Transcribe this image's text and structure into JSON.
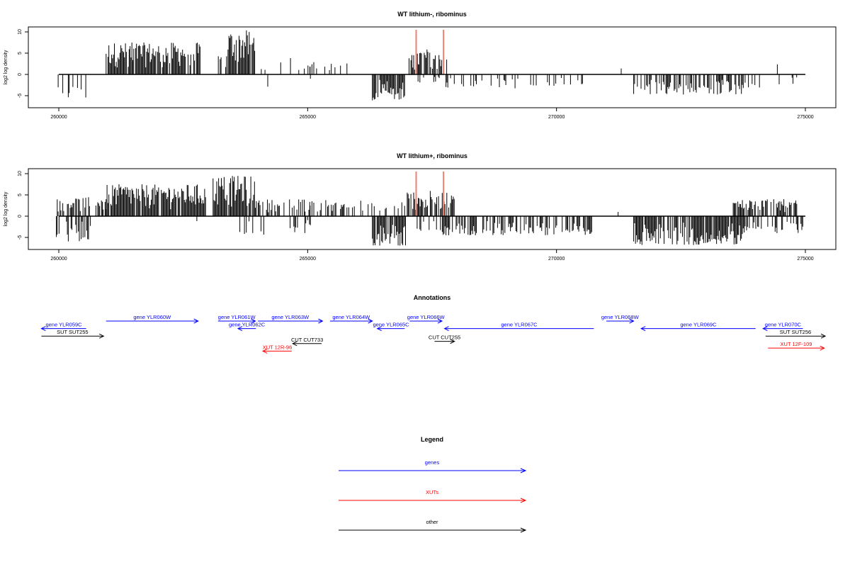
{
  "chart_data": [
    {
      "type": "bar",
      "title": "WT lithium-, ribominus",
      "ylabel": "log2 log density",
      "xlabel": "",
      "xlim": [
        260000,
        275000
      ],
      "ylim": [
        -7,
        11
      ],
      "x_ticks": [
        260000,
        265000,
        270000,
        275000
      ],
      "x_tick_labels": [
        "260000",
        "265000",
        "270000",
        "275000"
      ],
      "y_ticks": [
        -5,
        0,
        5,
        10
      ],
      "y_tick_labels": [
        "-5",
        "0",
        "5",
        "10"
      ],
      "highlight_color": "#f08070",
      "highlight_x": [
        267180,
        267730
      ],
      "highlight_height": 10.5,
      "series": [
        {
          "strand": "+",
          "color": "#000000",
          "regions": [
            {
              "from": 259950,
              "to": 260150,
              "density": 0.12,
              "max": 1.5
            },
            {
              "from": 260200,
              "to": 260500,
              "density": 0.1,
              "max": 4.3
            },
            {
              "from": 260550,
              "to": 260750,
              "density": 0.07,
              "max": 2.5
            },
            {
              "from": 260950,
              "to": 262850,
              "density": 0.85,
              "max": 7.5
            },
            {
              "from": 263150,
              "to": 263400,
              "density": 0.35,
              "max": 4.5
            },
            {
              "from": 263400,
              "to": 263950,
              "density": 0.9,
              "max": 10.4
            },
            {
              "from": 264050,
              "to": 264200,
              "density": 0.1,
              "max": 3.0
            },
            {
              "from": 264200,
              "to": 264500,
              "density": 0.08,
              "max": 3.5
            },
            {
              "from": 264600,
              "to": 265050,
              "density": 0.18,
              "max": 4.0
            },
            {
              "from": 265050,
              "to": 265850,
              "density": 0.12,
              "max": 3.5
            },
            {
              "from": 265900,
              "to": 266200,
              "density": 0.1,
              "max": 3.2
            },
            {
              "from": 267000,
              "to": 267250,
              "density": 0.6,
              "max": 5.0
            },
            {
              "from": 267250,
              "to": 267700,
              "density": 0.7,
              "max": 6.0
            },
            {
              "from": 267700,
              "to": 267900,
              "density": 0.3,
              "max": 4.0
            },
            {
              "from": 270950,
              "to": 271050,
              "density": 0.08,
              "max": 2.0
            },
            {
              "from": 271300,
              "to": 271550,
              "density": 0.1,
              "max": 2.5
            },
            {
              "from": 274100,
              "to": 274300,
              "density": 0.1,
              "max": 3.5
            },
            {
              "from": 274400,
              "to": 274900,
              "density": 0.08,
              "max": 2.5
            }
          ]
        },
        {
          "strand": "-",
          "color": "#000000",
          "regions": [
            {
              "from": 259950,
              "to": 260550,
              "density": 0.45,
              "max": 5.5
            },
            {
              "from": 261000,
              "to": 261250,
              "density": 0.05,
              "max": 1.5
            },
            {
              "from": 264050,
              "to": 264300,
              "density": 0.08,
              "max": 3.5
            },
            {
              "from": 264650,
              "to": 264950,
              "density": 0.1,
              "max": 3.5
            },
            {
              "from": 265000,
              "to": 265300,
              "density": 0.08,
              "max": 2.5
            },
            {
              "from": 266300,
              "to": 266950,
              "density": 0.85,
              "max": 6.2
            },
            {
              "from": 267200,
              "to": 267650,
              "density": 0.15,
              "max": 2.5
            },
            {
              "from": 267650,
              "to": 269800,
              "density": 0.22,
              "max": 3.5
            },
            {
              "from": 269800,
              "to": 270800,
              "density": 0.2,
              "max": 3.0
            },
            {
              "from": 271550,
              "to": 273800,
              "density": 0.55,
              "max": 4.8
            },
            {
              "from": 273800,
              "to": 274300,
              "density": 0.12,
              "max": 3.2
            },
            {
              "from": 274400,
              "to": 274900,
              "density": 0.1,
              "max": 2.5
            }
          ]
        }
      ]
    },
    {
      "type": "bar",
      "title": "WT lithium+, ribominus",
      "ylabel": "log2 log density",
      "xlabel": "",
      "xlim": [
        260000,
        275000
      ],
      "ylim": [
        -7,
        11
      ],
      "x_ticks": [
        260000,
        265000,
        270000,
        275000
      ],
      "x_tick_labels": [
        "260000",
        "265000",
        "270000",
        "275000"
      ],
      "y_ticks": [
        -5,
        0,
        5,
        10
      ],
      "y_tick_labels": [
        "-5",
        "0",
        "5",
        "10"
      ],
      "highlight_color": "#f08070",
      "highlight_x": [
        267180,
        267730
      ],
      "highlight_height": 10.5,
      "series": [
        {
          "strand": "+",
          "color": "#000000",
          "regions": [
            {
              "from": 259950,
              "to": 260950,
              "density": 0.55,
              "max": 4.5
            },
            {
              "from": 260950,
              "to": 262950,
              "density": 0.9,
              "max": 7.5
            },
            {
              "from": 263100,
              "to": 263950,
              "density": 0.9,
              "max": 9.5
            },
            {
              "from": 263950,
              "to": 265050,
              "density": 0.45,
              "max": 4.0
            },
            {
              "from": 265050,
              "to": 266300,
              "density": 0.4,
              "max": 3.8
            },
            {
              "from": 266300,
              "to": 266950,
              "density": 0.35,
              "max": 3.5
            },
            {
              "from": 267000,
              "to": 267950,
              "density": 0.8,
              "max": 6.0
            },
            {
              "from": 270950,
              "to": 271050,
              "density": 0.08,
              "max": 1.5
            },
            {
              "from": 271200,
              "to": 271500,
              "density": 0.12,
              "max": 2.5
            },
            {
              "from": 271950,
              "to": 272050,
              "density": 0.05,
              "max": 3.0
            },
            {
              "from": 273550,
              "to": 274950,
              "density": 0.6,
              "max": 4.0
            }
          ]
        },
        {
          "strand": "-",
          "color": "#000000",
          "regions": [
            {
              "from": 259950,
              "to": 260650,
              "density": 0.55,
              "max": 6.0
            },
            {
              "from": 261950,
              "to": 262050,
              "density": 0.05,
              "max": 1.5
            },
            {
              "from": 262700,
              "to": 262900,
              "density": 0.1,
              "max": 2.5
            },
            {
              "from": 263600,
              "to": 264200,
              "density": 0.2,
              "max": 4.5
            },
            {
              "from": 264500,
              "to": 265100,
              "density": 0.25,
              "max": 4.0
            },
            {
              "from": 266300,
              "to": 267000,
              "density": 0.9,
              "max": 7.0
            },
            {
              "from": 267200,
              "to": 267650,
              "density": 0.3,
              "max": 3.5
            },
            {
              "from": 267650,
              "to": 269800,
              "density": 0.55,
              "max": 4.5
            },
            {
              "from": 269800,
              "to": 270800,
              "density": 0.5,
              "max": 4.5
            },
            {
              "from": 271550,
              "to": 273800,
              "density": 0.85,
              "max": 6.8
            },
            {
              "from": 273800,
              "to": 274950,
              "density": 0.4,
              "max": 4.0
            }
          ]
        }
      ]
    },
    {
      "type": "diagram",
      "title": "Annotations",
      "xlim": [
        260000,
        275000
      ],
      "features": [
        {
          "label": "gene YLR059C",
          "from": 259650,
          "to": 260550,
          "strand": "-",
          "category": "genes",
          "lane": 2
        },
        {
          "label": "gene YLR060W",
          "from": 260950,
          "to": 262800,
          "strand": "+",
          "category": "genes",
          "lane": 1
        },
        {
          "label": "gene YLR061W",
          "from": 263200,
          "to": 263950,
          "strand": "+",
          "category": "genes",
          "lane": 1
        },
        {
          "label": "gene YLR062C",
          "from": 263600,
          "to": 263960,
          "strand": "-",
          "category": "genes",
          "lane": 2
        },
        {
          "label": "gene YLR063W",
          "from": 264000,
          "to": 265300,
          "strand": "+",
          "category": "genes",
          "lane": 1
        },
        {
          "label": "gene YLR064W",
          "from": 265450,
          "to": 266300,
          "strand": "+",
          "category": "genes",
          "lane": 1
        },
        {
          "label": "gene YLR065C",
          "from": 266400,
          "to": 266950,
          "strand": "-",
          "category": "genes",
          "lane": 2
        },
        {
          "label": "gene YLR066W",
          "from": 267050,
          "to": 267700,
          "strand": "+",
          "category": "genes",
          "lane": 1
        },
        {
          "label": "gene YLR067C",
          "from": 267750,
          "to": 270750,
          "strand": "-",
          "category": "genes",
          "lane": 2
        },
        {
          "label": "gene YLR068W",
          "from": 271000,
          "to": 271550,
          "strand": "+",
          "category": "genes",
          "lane": 1
        },
        {
          "label": "gene YLR069C",
          "from": 271700,
          "to": 274000,
          "strand": "-",
          "category": "genes",
          "lane": 2
        },
        {
          "label": "gene YLR070C",
          "from": 274150,
          "to": 274950,
          "strand": "-",
          "category": "genes",
          "lane": 2
        },
        {
          "label": "SUT SUT255",
          "from": 259650,
          "to": 260900,
          "strand": "+",
          "category": "other",
          "lane": 3
        },
        {
          "label": "SUT SUT256",
          "from": 274200,
          "to": 275400,
          "strand": "+",
          "category": "other",
          "lane": 3
        },
        {
          "label": "CUT CUT733",
          "from": 264700,
          "to": 265280,
          "strand": "-",
          "category": "other",
          "lane": 4
        },
        {
          "label": "CUT CUT255",
          "from": 267550,
          "to": 267950,
          "strand": "+",
          "category": "other",
          "lane": 3.7
        },
        {
          "label": "XUT 12R-96",
          "from": 264100,
          "to": 264680,
          "strand": "-",
          "category": "XUTs",
          "lane": 5
        },
        {
          "label": "XUT 12F-109",
          "from": 274250,
          "to": 275380,
          "strand": "+",
          "category": "XUTs",
          "lane": 4.6
        }
      ]
    }
  ],
  "legend": {
    "title": "Legend",
    "items": [
      {
        "label": "genes",
        "color": "#0000ff"
      },
      {
        "label": "XUTs",
        "color": "#ff0000"
      },
      {
        "label": "other",
        "color": "#000000"
      }
    ]
  },
  "colors": {
    "genes": "#0000ff",
    "XUTs": "#ff0000",
    "other": "#000000",
    "axis": "#000000"
  }
}
